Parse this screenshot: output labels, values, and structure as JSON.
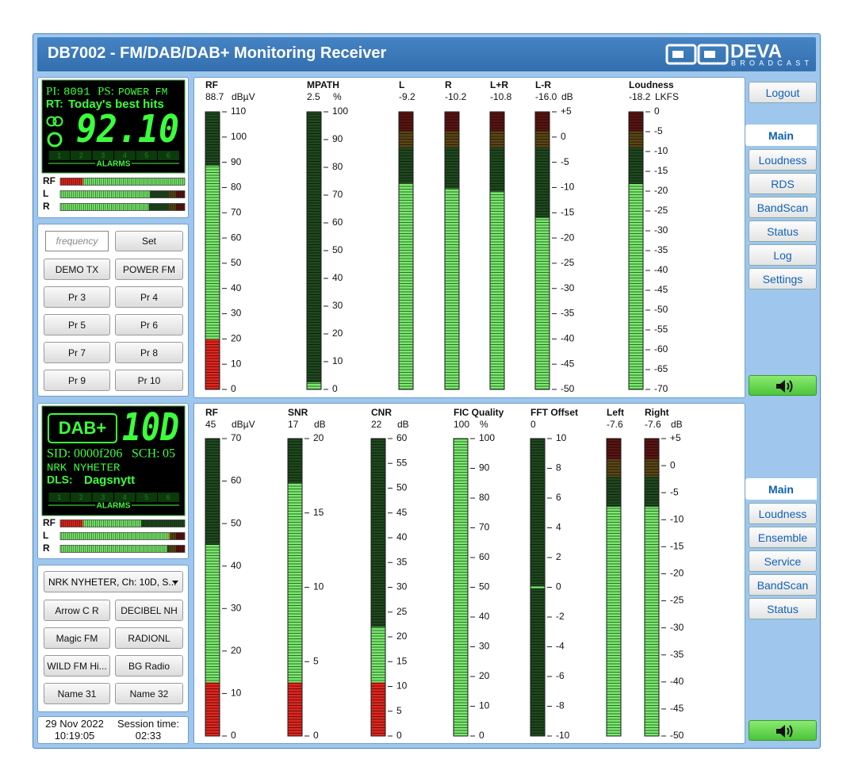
{
  "header": {
    "title": "DB7002 - FM/DAB/DAB+ Monitoring Receiver",
    "logo": "DEVA",
    "logo_sub": "BROADCAST"
  },
  "fm": {
    "display": {
      "pi_label": "PI:",
      "pi": "8091",
      "ps_label": "PS:",
      "ps": "POWER FM",
      "rt_label": "RT:",
      "rt": "Today's best hits",
      "frequency": "92.10",
      "alarms": [
        1,
        2,
        3,
        4,
        5,
        6
      ],
      "alarms_label": "ALARMS"
    },
    "mini_meters": {
      "xlim": [
        0,
        100
      ],
      "items": [
        {
          "label": "RF",
          "value": 100,
          "zone": "bottom"
        },
        {
          "label": "L",
          "value": 72,
          "zone": "top"
        },
        {
          "label": "R",
          "value": 71,
          "zone": "top"
        }
      ]
    },
    "frequency_placeholder": "frequency",
    "set": "Set",
    "presets": [
      "DEMO TX",
      "POWER FM",
      "Pr 3",
      "Pr 4",
      "Pr 5",
      "Pr 6",
      "Pr 7",
      "Pr 8",
      "Pr 9",
      "Pr 10"
    ],
    "meters": [
      {
        "label": "RF",
        "value": 88.7,
        "unit": "dBµV",
        "zone": "bottom",
        "mode": "bar",
        "ylim": [
          0,
          110
        ],
        "yticks": [
          0,
          10,
          20,
          30,
          40,
          50,
          60,
          70,
          80,
          90,
          100,
          110
        ]
      },
      {
        "label": "MPATH",
        "value": 2.5,
        "unit": "%",
        "zone": "none",
        "mode": "bar",
        "ylim": [
          0,
          100
        ],
        "yticks": [
          0,
          10,
          20,
          30,
          40,
          50,
          60,
          70,
          80,
          90,
          100
        ]
      },
      {
        "label": "L",
        "value": -9.2,
        "zone": "top",
        "mode": "bar",
        "ylim": [
          -50,
          5
        ]
      },
      {
        "label": "R",
        "value": -10.2,
        "zone": "top",
        "mode": "bar",
        "ylim": [
          -50,
          5
        ]
      },
      {
        "label": "L+R",
        "value": -10.8,
        "zone": "top",
        "mode": "bar",
        "ylim": [
          -50,
          5
        ]
      },
      {
        "label": "L-R",
        "value": -16,
        "value_label": "-16.0",
        "unit": "dB",
        "zone": "top",
        "mode": "bar",
        "ylim": [
          -50,
          5
        ],
        "yticks": [
          {
            "value": 5,
            "label": "+5"
          },
          0,
          -5,
          -10,
          -15,
          -20,
          -25,
          -30,
          -35,
          -40,
          -45,
          -50
        ]
      },
      {
        "label": "Loudness",
        "value": -18.2,
        "unit": "LKFS",
        "zone": "top",
        "mode": "bar",
        "ylim": [
          -70,
          0
        ],
        "yticks": [
          0,
          -5,
          -10,
          -15,
          -20,
          -25,
          -30,
          -35,
          -40,
          -45,
          -50,
          -55,
          -60,
          -65,
          -70
        ]
      }
    ],
    "nav_top": "Logout",
    "tabs": [
      "Main",
      "Loudness",
      "RDS",
      "BandScan",
      "Status",
      "Log",
      "Settings"
    ],
    "active_tab": 0
  },
  "dab": {
    "display": {
      "logo": "DAB+",
      "channel": "10D",
      "sid_label": "SID:",
      "sid": "0000f206",
      "sch_label": "SCH:",
      "sch": "05",
      "service": "NRK NYHETER",
      "dls_label": "DLS:",
      "dls": "Dagsnytt",
      "alarms": [
        1,
        2,
        3,
        4,
        5,
        6
      ],
      "alarms_label": "ALARMS"
    },
    "mini_meters": {
      "xlim": [
        0,
        100
      ],
      "items": [
        {
          "label": "RF",
          "value": 65,
          "zone": "bottom"
        },
        {
          "label": "L",
          "value": 88,
          "zone": "top"
        },
        {
          "label": "R",
          "value": 86,
          "zone": "top"
        }
      ]
    },
    "service_select": "NRK NYHETER, Ch: 10D, S...",
    "presets": [
      "Arrow C R",
      "DECIBEL NH",
      "Magic FM",
      "RADIONL",
      "WILD FM Hi...",
      "BG Radio",
      "Name 31",
      "Name 32"
    ],
    "meters": [
      {
        "label": "RF",
        "value": 45,
        "unit": "dBµV",
        "zone": "bottom",
        "mode": "bar",
        "ylim": [
          0,
          70
        ],
        "yticks": [
          0,
          10,
          20,
          30,
          40,
          50,
          60,
          70
        ]
      },
      {
        "label": "SNR",
        "value": 17,
        "unit": "dB",
        "zone": "bottom",
        "mode": "bar",
        "ylim": [
          0,
          20
        ],
        "yticks": [
          0,
          5,
          10,
          15,
          20
        ]
      },
      {
        "label": "CNR",
        "value": 22,
        "unit": "dB",
        "zone": "bottom",
        "mode": "bar",
        "ylim": [
          0,
          60
        ],
        "yticks": [
          0,
          5,
          10,
          15,
          20,
          25,
          30,
          35,
          40,
          45,
          50,
          55,
          60
        ]
      },
      {
        "label": "FIC Quality",
        "value": 100,
        "unit": "%",
        "zone": "none",
        "mode": "bar",
        "ylim": [
          0,
          100
        ],
        "yticks": [
          0,
          10,
          20,
          30,
          40,
          50,
          60,
          70,
          80,
          90,
          100
        ]
      },
      {
        "label": "FFT Offset",
        "value": 0,
        "zone": "none",
        "mode": "marker",
        "ylim": [
          -10,
          10
        ],
        "yticks": [
          -10,
          -8,
          -6,
          -4,
          -2,
          0,
          2,
          4,
          6,
          8,
          10
        ]
      },
      {
        "label": "Left",
        "value": -7.6,
        "zone": "top",
        "mode": "bar",
        "ylim": [
          -50,
          5
        ]
      },
      {
        "label": "Right",
        "value": -7.6,
        "unit": "dB",
        "zone": "top",
        "mode": "bar",
        "ylim": [
          -50,
          5
        ],
        "yticks": [
          {
            "value": 5,
            "label": "+5"
          },
          0,
          -5,
          -10,
          -15,
          -20,
          -25,
          -30,
          -35,
          -40,
          -45,
          -50
        ]
      }
    ],
    "tabs": [
      "Main",
      "Loudness",
      "Ensemble",
      "Service",
      "BandScan",
      "Status"
    ],
    "active_tab": 0
  },
  "footer": {
    "date": "29 Nov 2022",
    "time": "10:19:05",
    "session_label": "Session time:",
    "session": "02:33"
  }
}
